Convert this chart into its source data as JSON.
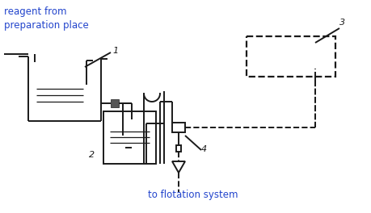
{
  "text_reagent": "reagent from\npreparation place",
  "text_flotation": "to flotation system",
  "label1": "1",
  "label2": "2",
  "label3": "3",
  "label4": "4",
  "bg_color": "#ffffff",
  "line_color": "#1a1a1a",
  "text_color_blue": "#2244cc",
  "figsize": [
    4.6,
    2.64
  ],
  "dpi": 100
}
